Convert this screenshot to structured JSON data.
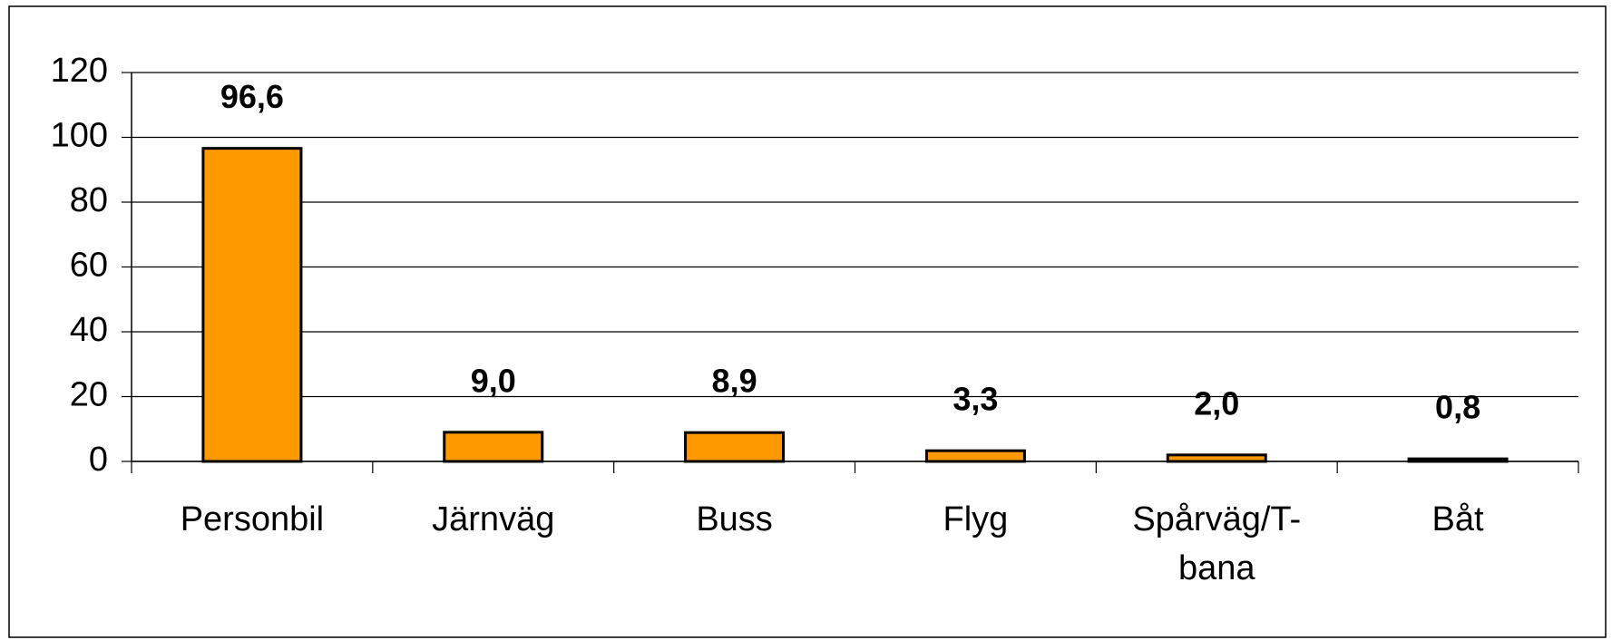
{
  "chart_data": {
    "type": "bar",
    "categories": [
      "Personbil",
      "Järnväg",
      "Buss",
      "Flyg",
      "Spårväg/T-bana",
      "Båt"
    ],
    "values": [
      96.6,
      9.0,
      8.9,
      3.3,
      2.0,
      0.8
    ],
    "value_labels": [
      "96,6",
      "9,0",
      "8,9",
      "3,3",
      "2,0",
      "0,8"
    ],
    "color": "#ff9900",
    "ylim": [
      0,
      120
    ],
    "yticks": [
      0,
      20,
      40,
      60,
      80,
      100,
      120
    ],
    "grid": true
  }
}
